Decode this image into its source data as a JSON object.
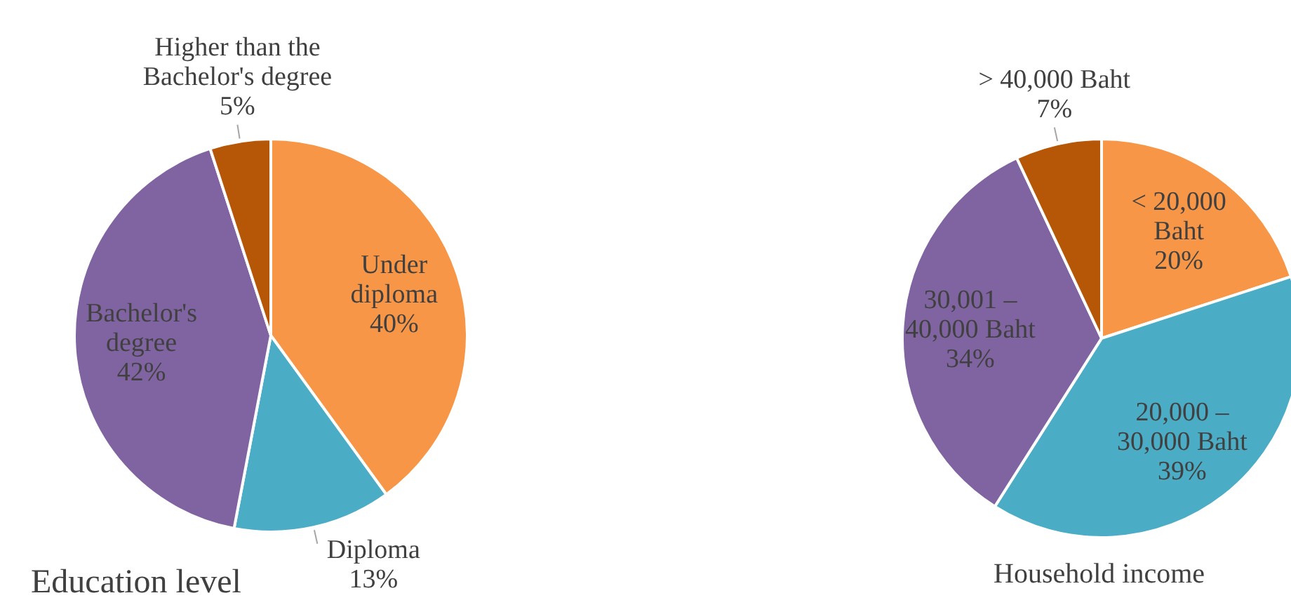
{
  "chart_data": [
    {
      "type": "pie",
      "title": "Education level",
      "categories": [
        "Under diploma",
        "Diploma",
        "Bachelor's degree",
        "Higher than the Bachelor's degree"
      ],
      "values": [
        40,
        13,
        42,
        5
      ],
      "value_labels": [
        "40%",
        "13%",
        "42%",
        "5%"
      ],
      "colors": [
        "#f79646",
        "#4bacc6",
        "#8064a2",
        "#b65708"
      ]
    },
    {
      "type": "pie",
      "title": "Household income",
      "categories": [
        "< 20,000 Baht",
        "20,000 – 30,000 Baht",
        "30,001 – 40,000 Baht",
        "> 40,000 Baht"
      ],
      "values": [
        20,
        39,
        34,
        7
      ],
      "value_labels": [
        "20%",
        "39%",
        "34%",
        "7%"
      ],
      "colors": [
        "#f79646",
        "#4bacc6",
        "#8064a2",
        "#b65708"
      ]
    }
  ]
}
